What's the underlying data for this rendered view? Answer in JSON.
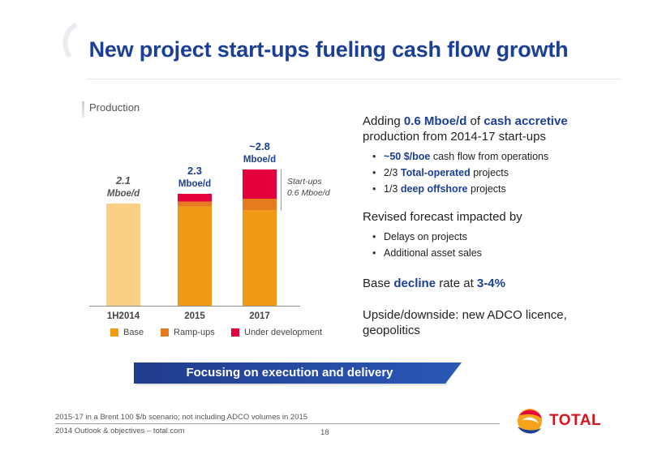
{
  "slide": {
    "title": "New project start-ups fueling cash flow growth",
    "section_label": "Production",
    "banner": "Focusing on execution and delivery",
    "footnote": "2015-17 in a Brent 100 $/b scenario; not including ADCO volumes in 2015",
    "footer": "2014 Outlook & objectives – total.com",
    "page_number": "18",
    "logo_text": "TOTAL"
  },
  "colors": {
    "title_blue": "#1a3f95",
    "base": "#f29a16",
    "base_light": "#f9cf86",
    "ramp_ups": "#e57a1e",
    "under_development": "#e4003d",
    "banner": "#213c8e"
  },
  "chart_data": {
    "type": "bar",
    "stacked": true,
    "categories": [
      "1H2014",
      "2015",
      "2017"
    ],
    "series": [
      {
        "name": "Base",
        "values": [
          2.1,
          2.04,
          1.96
        ]
      },
      {
        "name": "Ramp-ups",
        "values": [
          0,
          0.1,
          0.24
        ]
      },
      {
        "name": "Under development",
        "values": [
          0,
          0.16,
          0.6
        ]
      }
    ],
    "totals": [
      2.1,
      2.3,
      2.8
    ],
    "total_labels": [
      {
        "value": "2.1",
        "unit": "Mboe/d"
      },
      {
        "value": "2.3",
        "unit": "Mboe/d"
      },
      {
        "value": "~2.8",
        "unit": "Mboe/d"
      }
    ],
    "annotation": {
      "line1": "Start-ups",
      "line2": "0.6 Mboe/d"
    },
    "ylim": [
      0,
      3.0
    ],
    "legend": [
      "Base",
      "Ramp-ups",
      "Under development"
    ],
    "legend_position": "bottom"
  },
  "text": {
    "p1_a": "Adding ",
    "p1_b": "0.6 Mboe/d",
    "p1_c": " of ",
    "p1_d": "cash accretive",
    "p1_e": "production from 2014-17 start-ups",
    "b1_a": "~",
    "b1_b": "50 $/boe",
    "b1_c": " cash flow from operations",
    "b2_a": "2/3 ",
    "b2_b": "Total-operated",
    "b2_c": " projects",
    "b3_a": "1/3 ",
    "b3_b": "deep offshore",
    "b3_c": " projects",
    "p2": "Revised forecast impacted by",
    "b4": "Delays on projects",
    "b5": "Additional asset sales",
    "p3_a": "Base ",
    "p3_b": "decline",
    "p3_c": " rate at ",
    "p3_d": "3-4%",
    "p4": "Upside/downside: new ADCO licence, geopolitics"
  }
}
